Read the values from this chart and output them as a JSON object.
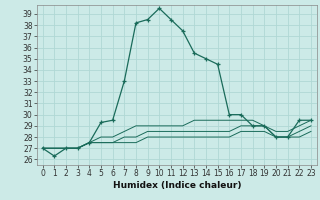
{
  "xlabel": "Humidex (Indice chaleur)",
  "bg_color": "#cceae7",
  "grid_color": "#b0d8d4",
  "line_color": "#1a6b5a",
  "xlim": [
    -0.5,
    23.5
  ],
  "ylim": [
    25.5,
    39.8
  ],
  "yticks": [
    26,
    27,
    28,
    29,
    30,
    31,
    32,
    33,
    34,
    35,
    36,
    37,
    38,
    39
  ],
  "xticks": [
    0,
    1,
    2,
    3,
    4,
    5,
    6,
    7,
    8,
    9,
    10,
    11,
    12,
    13,
    14,
    15,
    16,
    17,
    18,
    19,
    20,
    21,
    22,
    23
  ],
  "series": [
    [
      27.0,
      26.3,
      27.0,
      27.0,
      27.5,
      29.3,
      29.5,
      33.0,
      38.2,
      38.5,
      39.5,
      38.5,
      37.5,
      35.5,
      35.0,
      34.5,
      30.0,
      30.0,
      29.0,
      29.0,
      28.0,
      28.0,
      29.5,
      29.5
    ],
    [
      27.0,
      27.0,
      27.0,
      27.0,
      27.5,
      28.0,
      28.0,
      28.5,
      29.0,
      29.0,
      29.0,
      29.0,
      29.0,
      29.5,
      29.5,
      29.5,
      29.5,
      29.5,
      29.5,
      29.0,
      28.5,
      28.5,
      29.0,
      29.5
    ],
    [
      27.0,
      27.0,
      27.0,
      27.0,
      27.5,
      27.5,
      27.5,
      28.0,
      28.0,
      28.5,
      28.5,
      28.5,
      28.5,
      28.5,
      28.5,
      28.5,
      28.5,
      29.0,
      29.0,
      29.0,
      28.0,
      28.0,
      28.5,
      29.0
    ],
    [
      27.0,
      27.0,
      27.0,
      27.0,
      27.5,
      27.5,
      27.5,
      27.5,
      27.5,
      28.0,
      28.0,
      28.0,
      28.0,
      28.0,
      28.0,
      28.0,
      28.0,
      28.5,
      28.5,
      28.5,
      28.0,
      28.0,
      28.0,
      28.5
    ]
  ],
  "tick_fontsize": 5.5,
  "xlabel_fontsize": 6.5
}
